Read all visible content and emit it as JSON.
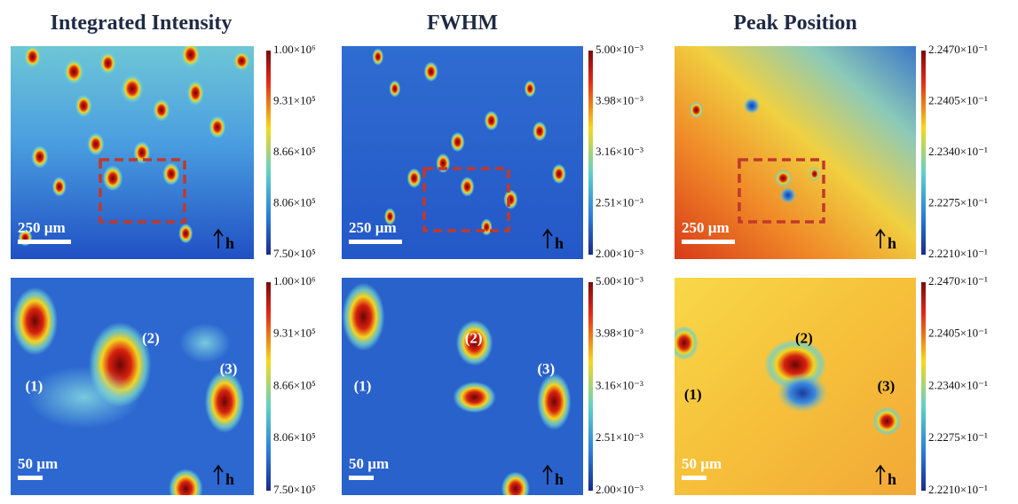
{
  "columns": [
    {
      "title": "Integrated Intensity",
      "colorbar": [
        "1.00×10⁶",
        "9.31×10⁵",
        "8.66×10⁵",
        "8.06×10⁵",
        "7.50×10⁵"
      ]
    },
    {
      "title": "FWHM",
      "colorbar": [
        "5.00×10⁻³",
        "3.98×10⁻³",
        "3.16×10⁻³",
        "2.51×10⁻³",
        "2.00×10⁻³"
      ]
    },
    {
      "title": "Peak Position",
      "colorbar": [
        "2.2470×10⁻¹",
        "2.2405×10⁻¹",
        "2.2340×10⁻¹",
        "2.2275×10⁻¹",
        "2.2210×10⁻¹"
      ]
    }
  ],
  "rows": [
    {
      "scale_bar": "250 µm"
    },
    {
      "scale_bar": "50 µm"
    }
  ],
  "direction": "h",
  "spots": [
    "(1)",
    "(2)",
    "(3)"
  ]
}
